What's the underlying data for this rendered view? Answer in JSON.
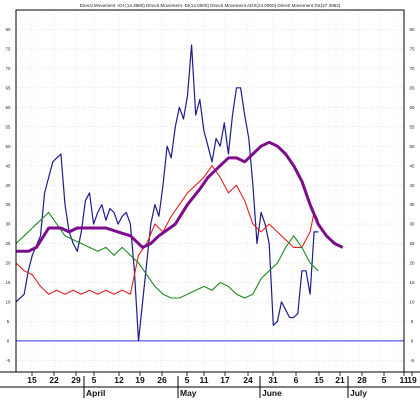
{
  "chart_data": {
    "type": "line",
    "title": "Directi Movement +DI (14.3980) Directi Movement -DI(13.0000) Directi Movement ADX(24.0000) Directi Movement DX(27.3862)",
    "ylim": [
      -8,
      85
    ],
    "y_ticks": [
      -5,
      0,
      5,
      10,
      15,
      20,
      25,
      30,
      35,
      40,
      45,
      50,
      55,
      60,
      65,
      70,
      75,
      80
    ],
    "x_tick_labels": [
      "15",
      "22",
      "29",
      "5",
      "12",
      "19",
      "26",
      "5",
      "11",
      "17",
      "24",
      "31",
      "6",
      "15",
      "21",
      "28",
      "5",
      "11",
      "19"
    ],
    "month_labels": [
      "April",
      "May",
      "June",
      "July"
    ],
    "grid": true,
    "zero_line_color": "#3333dd",
    "series": [
      {
        "color": "#1c1c8c",
        "width": 1.2,
        "points": [
          [
            0,
            10
          ],
          [
            2,
            12
          ],
          [
            3,
            18
          ],
          [
            4,
            22
          ],
          [
            6,
            27
          ],
          [
            7,
            38
          ],
          [
            9,
            46
          ],
          [
            10,
            47
          ],
          [
            11,
            48
          ],
          [
            12,
            35
          ],
          [
            13,
            28
          ],
          [
            14,
            25
          ],
          [
            15,
            23
          ],
          [
            16,
            28
          ],
          [
            17,
            36
          ],
          [
            18,
            38
          ],
          [
            19,
            30
          ],
          [
            20,
            33
          ],
          [
            21,
            35
          ],
          [
            22,
            31
          ],
          [
            23,
            34
          ],
          [
            24,
            33
          ],
          [
            25,
            30
          ],
          [
            26,
            32
          ],
          [
            27,
            33
          ],
          [
            28,
            30
          ],
          [
            29,
            18
          ],
          [
            30,
            0
          ],
          [
            31,
            10
          ],
          [
            32,
            20
          ],
          [
            33,
            30
          ],
          [
            34,
            35
          ],
          [
            35,
            32
          ],
          [
            36,
            40
          ],
          [
            37,
            50
          ],
          [
            38,
            47
          ],
          [
            39,
            55
          ],
          [
            40,
            60
          ],
          [
            41,
            57
          ],
          [
            42,
            63
          ],
          [
            43,
            76
          ],
          [
            44,
            58
          ],
          [
            45,
            62
          ],
          [
            46,
            54
          ],
          [
            47,
            50
          ],
          [
            48,
            46
          ],
          [
            49,
            52
          ],
          [
            50,
            50
          ],
          [
            51,
            56
          ],
          [
            52,
            48
          ],
          [
            53,
            58
          ],
          [
            54,
            65
          ],
          [
            55,
            65
          ],
          [
            56,
            58
          ],
          [
            57,
            52
          ],
          [
            58,
            40
          ],
          [
            59,
            25
          ],
          [
            60,
            33
          ],
          [
            61,
            30
          ],
          [
            62,
            25
          ],
          [
            63,
            4
          ],
          [
            64,
            5
          ],
          [
            65,
            10
          ],
          [
            66,
            8
          ],
          [
            67,
            6
          ],
          [
            68,
            6
          ],
          [
            69,
            7
          ],
          [
            70,
            18
          ],
          [
            71,
            18
          ],
          [
            72,
            12
          ],
          [
            73,
            28
          ],
          [
            74,
            28
          ]
        ]
      },
      {
        "color": "#e02020",
        "width": 1.1,
        "points": [
          [
            0,
            20
          ],
          [
            2,
            18
          ],
          [
            4,
            17
          ],
          [
            6,
            14
          ],
          [
            8,
            12
          ],
          [
            10,
            13
          ],
          [
            12,
            12
          ],
          [
            14,
            13
          ],
          [
            16,
            12
          ],
          [
            18,
            13
          ],
          [
            20,
            12
          ],
          [
            22,
            13
          ],
          [
            24,
            12
          ],
          [
            26,
            13
          ],
          [
            28,
            12
          ],
          [
            30,
            22
          ],
          [
            32,
            25
          ],
          [
            34,
            30
          ],
          [
            36,
            28
          ],
          [
            38,
            32
          ],
          [
            40,
            35
          ],
          [
            42,
            38
          ],
          [
            44,
            40
          ],
          [
            46,
            42
          ],
          [
            48,
            45
          ],
          [
            50,
            42
          ],
          [
            52,
            38
          ],
          [
            54,
            40
          ],
          [
            56,
            36
          ],
          [
            58,
            30
          ],
          [
            60,
            28
          ],
          [
            62,
            30
          ],
          [
            64,
            28
          ],
          [
            66,
            26
          ],
          [
            68,
            24
          ],
          [
            70,
            24
          ],
          [
            72,
            28
          ],
          [
            73,
            33
          ],
          [
            74,
            31
          ]
        ]
      },
      {
        "color": "#1e8a1e",
        "width": 1.1,
        "points": [
          [
            0,
            25
          ],
          [
            2,
            27
          ],
          [
            4,
            29
          ],
          [
            6,
            31
          ],
          [
            8,
            33
          ],
          [
            10,
            30
          ],
          [
            12,
            27
          ],
          [
            14,
            26
          ],
          [
            16,
            25
          ],
          [
            18,
            24
          ],
          [
            20,
            23
          ],
          [
            22,
            24
          ],
          [
            24,
            22
          ],
          [
            26,
            24
          ],
          [
            28,
            22
          ],
          [
            30,
            20
          ],
          [
            32,
            17
          ],
          [
            34,
            14
          ],
          [
            36,
            12
          ],
          [
            38,
            11
          ],
          [
            40,
            11
          ],
          [
            42,
            12
          ],
          [
            44,
            13
          ],
          [
            46,
            14
          ],
          [
            48,
            13
          ],
          [
            50,
            15
          ],
          [
            52,
            14
          ],
          [
            54,
            12
          ],
          [
            56,
            11
          ],
          [
            58,
            12
          ],
          [
            60,
            16
          ],
          [
            62,
            18
          ],
          [
            64,
            20
          ],
          [
            66,
            24
          ],
          [
            68,
            27
          ],
          [
            70,
            24
          ],
          [
            72,
            20
          ],
          [
            74,
            18
          ]
        ]
      },
      {
        "color": "#7d0d8c",
        "width": 3,
        "points": [
          [
            0,
            23
          ],
          [
            3,
            23
          ],
          [
            5,
            24
          ],
          [
            8,
            29
          ],
          [
            11,
            29
          ],
          [
            13,
            28
          ],
          [
            15,
            29
          ],
          [
            19,
            29
          ],
          [
            22,
            29
          ],
          [
            25,
            28
          ],
          [
            28,
            27
          ],
          [
            31,
            24
          ],
          [
            33,
            25
          ],
          [
            35,
            27
          ],
          [
            39,
            30
          ],
          [
            42,
            35
          ],
          [
            45,
            39
          ],
          [
            47,
            42
          ],
          [
            49,
            44
          ],
          [
            51,
            46
          ],
          [
            52,
            47
          ],
          [
            54,
            47
          ],
          [
            56,
            46
          ],
          [
            57,
            47
          ],
          [
            58,
            48
          ],
          [
            60,
            50
          ],
          [
            62,
            51
          ],
          [
            64,
            50
          ],
          [
            66,
            48
          ],
          [
            68,
            45
          ],
          [
            70,
            41
          ],
          [
            72,
            35
          ],
          [
            74,
            30
          ],
          [
            76,
            27
          ],
          [
            78,
            25
          ],
          [
            80,
            24
          ]
        ]
      }
    ]
  }
}
